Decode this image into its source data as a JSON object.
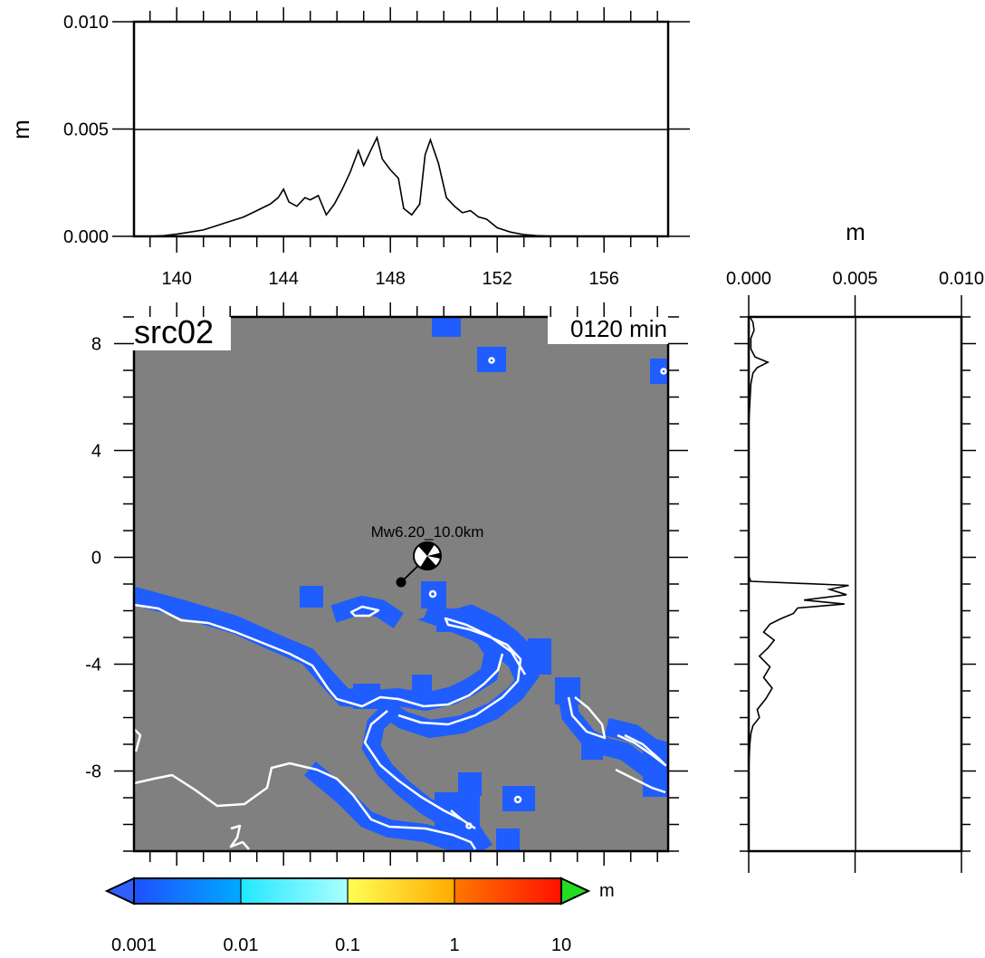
{
  "chart_data": [
    {
      "type": "line",
      "panel": "top-profile",
      "ylabel": "m",
      "xlim": [
        138.4,
        158.4
      ],
      "ylim": [
        0.0,
        0.01
      ],
      "x_ticks": [
        "140",
        "144",
        "148",
        "152",
        "156"
      ],
      "x_tick_values": [
        140,
        144,
        148,
        152,
        156
      ],
      "y_ticks": [
        "0.000",
        "0.005",
        "0.010"
      ],
      "y_tick_values": [
        0.0,
        0.005,
        0.01
      ],
      "reference_line_y": 0.005,
      "series": [
        {
          "x": [
            138.4,
            139.0,
            139.5,
            140.0,
            140.5,
            141.0,
            141.5,
            142.0,
            142.5,
            143.0,
            143.5,
            143.8,
            144.0,
            144.2,
            144.5,
            144.8,
            145.0,
            145.3,
            145.6,
            145.9,
            146.2,
            146.5,
            146.8,
            147.0,
            147.3,
            147.5,
            147.7,
            148.0,
            148.3,
            148.5,
            148.8,
            149.1,
            149.3,
            149.5,
            149.8,
            150.1,
            150.4,
            150.7,
            151.0,
            151.3,
            151.6,
            152.0,
            152.5,
            153.0,
            153.5,
            154.0,
            155.0,
            156.0,
            157.0,
            158.4
          ],
          "y": [
            0.0,
            0.0,
            3e-05,
            0.0001,
            0.0002,
            0.0003,
            0.0005,
            0.0007,
            0.0009,
            0.0012,
            0.0015,
            0.0018,
            0.0022,
            0.0016,
            0.0014,
            0.0018,
            0.0017,
            0.0019,
            0.001,
            0.0015,
            0.0022,
            0.003,
            0.004,
            0.0033,
            0.0041,
            0.0046,
            0.0036,
            0.0031,
            0.0027,
            0.0013,
            0.001,
            0.0015,
            0.0038,
            0.0045,
            0.0034,
            0.0018,
            0.0014,
            0.0011,
            0.0012,
            0.0009,
            0.0008,
            0.0004,
            0.0002,
            8e-05,
            3e-05,
            1e-05,
            0.0,
            0.0,
            0.0,
            0.0
          ]
        }
      ]
    },
    {
      "type": "line",
      "panel": "right-profile",
      "xlabel": "m",
      "xlim": [
        0.0,
        0.01
      ],
      "ylim": [
        -11,
        9
      ],
      "x_ticks": [
        "0.000",
        "0.005",
        "0.010"
      ],
      "x_tick_values": [
        0.0,
        0.005,
        0.01
      ],
      "reference_line_x": 0.005,
      "series": [
        {
          "y": [
            9.0,
            8.8,
            8.5,
            8.2,
            7.8,
            7.5,
            7.3,
            7.1,
            6.9,
            6.5,
            5.0,
            3.0,
            1.0,
            0.0,
            -0.7,
            -0.9,
            -1.05,
            -1.2,
            -1.4,
            -1.6,
            -1.75,
            -1.9,
            -2.1,
            -2.3,
            -2.5,
            -2.8,
            -3.1,
            -3.4,
            -3.7,
            -4.1,
            -4.5,
            -4.9,
            -5.3,
            -5.7,
            -6.0,
            -6.3,
            -6.6,
            -7.0,
            -7.5,
            -8.0,
            -9.0,
            -10.0,
            -11.0
          ],
          "x": [
            5e-05,
            0.0002,
            0.00025,
            0.0001,
            0.0001,
            0.0003,
            0.0009,
            0.0004,
            0.0002,
            0.0001,
            0.0,
            0.0,
            0.0,
            0.0,
            0.0,
            0.0001,
            0.0047,
            0.0038,
            0.0046,
            0.0026,
            0.0045,
            0.0023,
            0.0021,
            0.0015,
            0.001,
            0.0007,
            0.0012,
            0.0009,
            0.0005,
            0.001,
            0.0007,
            0.0011,
            0.0008,
            0.0004,
            0.0005,
            0.0002,
            0.0001,
            5e-05,
            2e-05,
            0.0,
            0.0,
            0.0,
            0.0
          ]
        }
      ]
    },
    {
      "type": "heatmap",
      "panel": "map",
      "xlim": [
        138.4,
        158.4
      ],
      "ylim": [
        -11,
        9
      ],
      "y_ticks": [
        "8",
        "4",
        "0",
        "-4",
        "-8"
      ],
      "y_tick_values": [
        8,
        4,
        0,
        -4,
        -8
      ],
      "source_label": "src02",
      "time_label": "0120 min",
      "epicenter": {
        "lon": 148.3,
        "lat": 0.0,
        "label": "Mw6.20_10.0km"
      },
      "station": {
        "lon": 148.3,
        "lat": 0.0
      },
      "colors": {
        "background": "#808080",
        "wave": "#1f5dff",
        "coast": "#ffffff"
      }
    }
  ],
  "colorbar": {
    "unit": "m",
    "labels": [
      "0.001",
      "0.01",
      "0.1",
      "1",
      "10"
    ],
    "colors": {
      "under": "#2f5fff",
      "over": "#22dd22",
      "segments": [
        [
          "#1f4fff",
          "#00aaff"
        ],
        [
          "#22e8ff",
          "#aaffff"
        ],
        [
          "#ffff55",
          "#ffaa00"
        ],
        [
          "#ff7700",
          "#ff1100"
        ]
      ]
    }
  }
}
